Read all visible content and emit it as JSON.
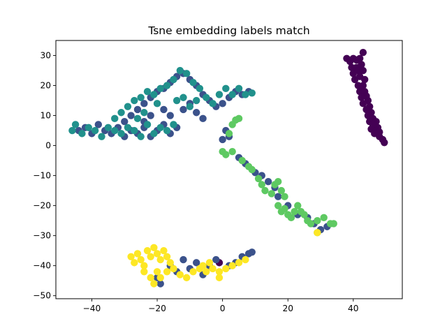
{
  "chart_data": {
    "type": "scatter",
    "title": "Tsne embedding labels match",
    "xlabel": "",
    "ylabel": "",
    "xlim": [
      -51,
      55
    ],
    "ylim": [
      -51,
      35
    ],
    "xticks": [
      -40,
      -20,
      0,
      20,
      40
    ],
    "yticks": [
      -50,
      -40,
      -30,
      -20,
      -10,
      0,
      10,
      20,
      30
    ],
    "xtick_labels": [
      "−40",
      "−20",
      "0",
      "20",
      "40"
    ],
    "ytick_labels": [
      "−50",
      "−40",
      "−30",
      "−20",
      "−10",
      "0",
      "10",
      "20",
      "30"
    ],
    "grid": false,
    "legend": null,
    "colormap": "viridis",
    "series": [
      {
        "color": "#440154",
        "points": [
          [
            38,
            29
          ],
          [
            39,
            28
          ],
          [
            40,
            29
          ],
          [
            41,
            28.5
          ],
          [
            42,
            29
          ],
          [
            43,
            31
          ],
          [
            39.5,
            26
          ],
          [
            41,
            26
          ],
          [
            42.5,
            27
          ],
          [
            40,
            24
          ],
          [
            41.5,
            25
          ],
          [
            43,
            25
          ],
          [
            40.5,
            22
          ],
          [
            42,
            23
          ],
          [
            43.5,
            22
          ],
          [
            41.5,
            20
          ],
          [
            43,
            20
          ],
          [
            42,
            18
          ],
          [
            43.5,
            18
          ],
          [
            44,
            16.5
          ],
          [
            42.5,
            16
          ],
          [
            44.5,
            15
          ],
          [
            43,
            14
          ],
          [
            45,
            13
          ],
          [
            44,
            12
          ],
          [
            45.5,
            11
          ],
          [
            44.5,
            10
          ],
          [
            46,
            9
          ],
          [
            45,
            8
          ],
          [
            47,
            8
          ],
          [
            46,
            7
          ],
          [
            47.5,
            6
          ],
          [
            45.5,
            5.5
          ],
          [
            47,
            5
          ],
          [
            48,
            4.5
          ],
          [
            46.5,
            4
          ],
          [
            48,
            3
          ],
          [
            49,
            2
          ],
          [
            49.5,
            1
          ],
          [
            -1,
            -39
          ]
        ]
      },
      {
        "color": "#3b528b",
        "points": [
          [
            -44,
            5
          ],
          [
            -42,
            6
          ],
          [
            -40,
            4
          ],
          [
            -38,
            7
          ],
          [
            -36,
            5
          ],
          [
            -34,
            4
          ],
          [
            -32,
            6
          ],
          [
            -30,
            3
          ],
          [
            -28,
            5
          ],
          [
            -26,
            4
          ],
          [
            -24,
            6
          ],
          [
            -22,
            3
          ],
          [
            -20,
            5
          ],
          [
            -18,
            7
          ],
          [
            -16,
            4
          ],
          [
            -14,
            6
          ],
          [
            -30,
            8
          ],
          [
            -28,
            10
          ],
          [
            -26,
            12
          ],
          [
            -24,
            14
          ],
          [
            -22,
            16
          ],
          [
            -20,
            18
          ],
          [
            -18,
            19
          ],
          [
            -16,
            21
          ],
          [
            -14,
            23
          ],
          [
            -12,
            24
          ],
          [
            -10,
            22
          ],
          [
            -8,
            20
          ],
          [
            -6,
            17
          ],
          [
            -4,
            15
          ],
          [
            -2,
            13
          ],
          [
            0,
            14
          ],
          [
            2,
            16
          ],
          [
            4,
            18
          ],
          [
            6,
            17
          ],
          [
            8,
            18
          ],
          [
            -12,
            12
          ],
          [
            -10,
            14
          ],
          [
            -8,
            11
          ],
          [
            -6,
            9
          ],
          [
            -16,
            10
          ],
          [
            -18,
            12
          ],
          [
            -22,
            10
          ],
          [
            -24,
            8
          ],
          [
            1,
            5
          ],
          [
            2,
            3
          ],
          [
            0,
            2
          ],
          [
            5,
            -4
          ],
          [
            7,
            -6
          ],
          [
            10,
            -9
          ],
          [
            12,
            -10
          ],
          [
            14,
            -12
          ],
          [
            16,
            -14
          ],
          [
            17,
            -17
          ],
          [
            20,
            -20
          ],
          [
            23,
            -23
          ],
          [
            26,
            -24
          ],
          [
            28,
            -26
          ],
          [
            30,
            -28
          ],
          [
            32,
            -27
          ],
          [
            -16,
            -40
          ],
          [
            -14,
            -42
          ],
          [
            -12,
            -38
          ],
          [
            -10,
            -41
          ],
          [
            -8,
            -39
          ],
          [
            -6,
            -43
          ],
          [
            -4,
            -40
          ],
          [
            -2,
            -38
          ],
          [
            2,
            -40
          ],
          [
            4,
            -39
          ],
          [
            6,
            -37
          ],
          [
            8,
            -36
          ],
          [
            9,
            -35.5
          ],
          [
            -20,
            -44
          ],
          [
            -19,
            -46
          ]
        ]
      },
      {
        "color": "#21918c",
        "points": [
          [
            -46,
            5
          ],
          [
            -45,
            7
          ],
          [
            -43,
            4
          ],
          [
            -41,
            6
          ],
          [
            -39,
            5
          ],
          [
            -37,
            3
          ],
          [
            -35,
            6
          ],
          [
            -33,
            5
          ],
          [
            -31,
            4
          ],
          [
            -29,
            6
          ],
          [
            -27,
            5
          ],
          [
            -25,
            3
          ],
          [
            -23,
            7
          ],
          [
            -21,
            4
          ],
          [
            -19,
            6
          ],
          [
            -17,
            5
          ],
          [
            -15,
            7
          ],
          [
            -33,
            9
          ],
          [
            -31,
            11
          ],
          [
            -29,
            13
          ],
          [
            -27,
            15
          ],
          [
            -25,
            16
          ],
          [
            -23,
            18
          ],
          [
            -21,
            17
          ],
          [
            -19,
            19
          ],
          [
            -17,
            20
          ],
          [
            -15,
            22
          ],
          [
            -13,
            25
          ],
          [
            -11,
            24
          ],
          [
            -9,
            21
          ],
          [
            -7,
            19
          ],
          [
            -5,
            16
          ],
          [
            -3,
            14
          ],
          [
            -1,
            17
          ],
          [
            1,
            19
          ],
          [
            3,
            17
          ],
          [
            5,
            19
          ],
          [
            7,
            17
          ],
          [
            9,
            17.5
          ],
          [
            -14,
            15
          ],
          [
            -12,
            16
          ],
          [
            -10,
            13
          ],
          [
            -8,
            15
          ],
          [
            -20,
            14
          ],
          [
            -24,
            11
          ],
          [
            -26,
            9
          ]
        ]
      },
      {
        "color": "#5ec962",
        "points": [
          [
            3,
            7
          ],
          [
            4,
            8.5
          ],
          [
            5,
            9
          ],
          [
            2,
            4
          ],
          [
            0,
            -2
          ],
          [
            1,
            -3
          ],
          [
            3,
            -2
          ],
          [
            6,
            -5
          ],
          [
            8,
            -7
          ],
          [
            9,
            -8
          ],
          [
            11,
            -11
          ],
          [
            12,
            -13
          ],
          [
            13,
            -15
          ],
          [
            15,
            -16
          ],
          [
            16,
            -13
          ],
          [
            17,
            -12
          ],
          [
            18,
            -15
          ],
          [
            19,
            -17
          ],
          [
            17,
            -20
          ],
          [
            18,
            -22
          ],
          [
            19,
            -21
          ],
          [
            20,
            -23
          ],
          [
            21,
            -24
          ],
          [
            22,
            -22
          ],
          [
            23,
            -20
          ],
          [
            24,
            -22
          ],
          [
            25,
            -23
          ],
          [
            26,
            -25
          ],
          [
            27,
            -26
          ],
          [
            29,
            -25
          ],
          [
            31,
            -24
          ],
          [
            33,
            -26
          ],
          [
            34,
            -26
          ],
          [
            29,
            -29
          ]
        ]
      },
      {
        "color": "#fde725",
        "points": [
          [
            -28,
            -37
          ],
          [
            -27,
            -39
          ],
          [
            -26,
            -36
          ],
          [
            -25,
            -38
          ],
          [
            -24,
            -40
          ],
          [
            -23,
            -35
          ],
          [
            -22,
            -37
          ],
          [
            -21,
            -34
          ],
          [
            -20,
            -36
          ],
          [
            -19,
            -38
          ],
          [
            -18,
            -35
          ],
          [
            -17,
            -37
          ],
          [
            -16,
            -39
          ],
          [
            -15,
            -41
          ],
          [
            -24,
            -42
          ],
          [
            -22,
            -44
          ],
          [
            -20,
            -42
          ],
          [
            -21,
            -46
          ],
          [
            -19,
            -44
          ],
          [
            -17,
            -42
          ],
          [
            -13,
            -43
          ],
          [
            -11,
            -44
          ],
          [
            -9,
            -42
          ],
          [
            -7,
            -41
          ],
          [
            -5,
            -42
          ],
          [
            -3,
            -41
          ],
          [
            -1,
            -42
          ],
          [
            1,
            -41
          ],
          [
            3,
            -40
          ],
          [
            5,
            -39
          ],
          [
            7,
            -38
          ],
          [
            -1,
            -44
          ],
          [
            29,
            -29
          ],
          [
            -4,
            -39
          ],
          [
            -6,
            -40
          ]
        ]
      }
    ]
  }
}
